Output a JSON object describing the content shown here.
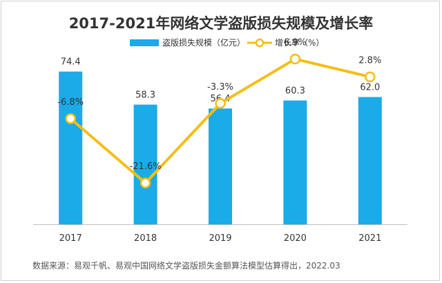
{
  "chart_data": {
    "type": "bar",
    "title": "2017-2021年网络文学盗版损失规模及增长率",
    "categories": [
      "2017",
      "2018",
      "2019",
      "2020",
      "2021"
    ],
    "series": [
      {
        "name": "盗版损失规模（亿元）",
        "type": "bar",
        "axis": "left",
        "values": [
          74.4,
          58.3,
          56.4,
          60.3,
          62.0
        ],
        "labels": [
          "74.4",
          "58.3",
          "56.4",
          "60.3",
          "62.0"
        ],
        "color": "#1AABE8"
      },
      {
        "name": "增长率（%）",
        "type": "line",
        "axis": "right",
        "values": [
          -6.8,
          -21.6,
          -3.3,
          6.9,
          2.8
        ],
        "labels": [
          "-6.8%",
          "-21.6%",
          "-3.3%",
          "6.9%",
          "2.8%"
        ],
        "color": "#F5BE16"
      }
    ],
    "ylim_left": [
      0,
      80
    ],
    "ylim_right": [
      -30,
      10
    ],
    "legend_position": "top-center",
    "grid": false
  },
  "source_note": "数据来源：易观千帆、易观中国网络文学盗版损失金额算法模型估算得出，2022.03"
}
